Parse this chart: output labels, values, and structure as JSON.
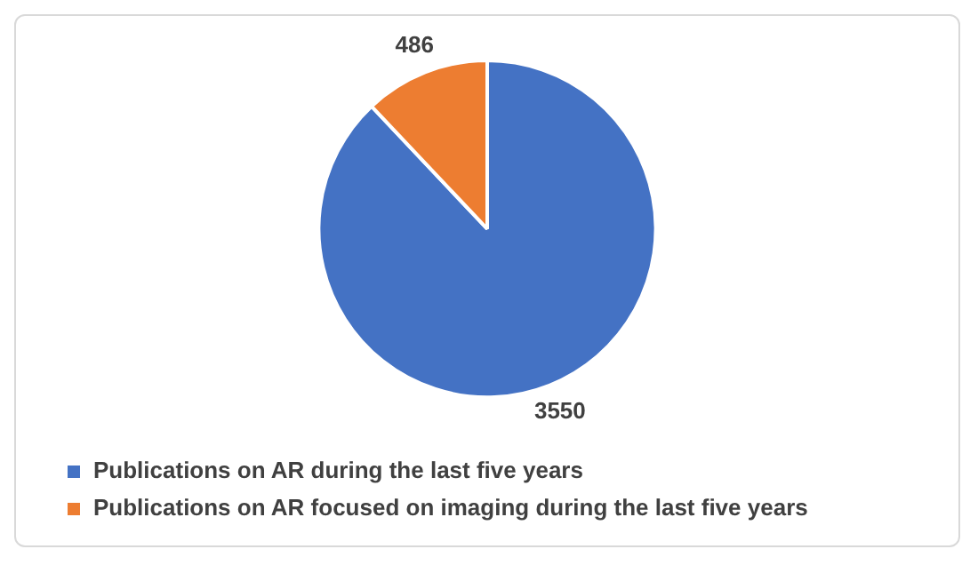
{
  "chart_data": {
    "type": "pie",
    "categories": [
      "Publications on AR during the last five years",
      "Publications on AR focused on imaging during the last five years"
    ],
    "values": [
      3550,
      486
    ],
    "colors": [
      "#4472c4",
      "#ed7d31"
    ],
    "data_labels": true,
    "legend": "bottom"
  }
}
